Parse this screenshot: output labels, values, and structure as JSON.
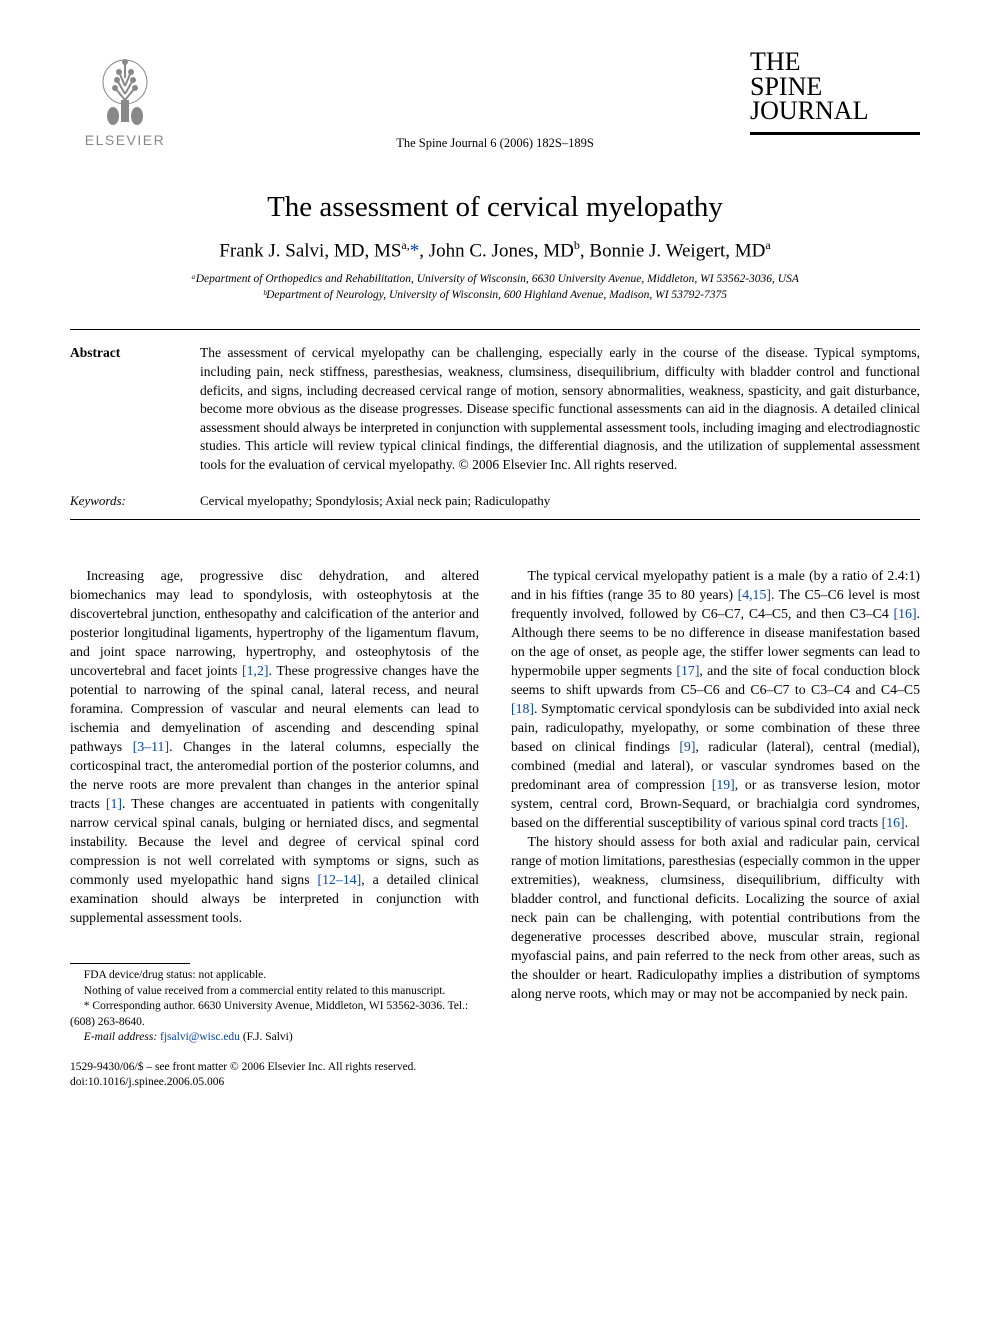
{
  "header": {
    "publisher_name": "ELSEVIER",
    "journal_name_line1": "THE",
    "journal_name_line2": "SPINE",
    "journal_name_line3": "JOURNAL",
    "journal_reference": "The Spine Journal 6 (2006) 182S–189S"
  },
  "article": {
    "title": "The assessment of cervical myelopathy",
    "authors_html": "Frank J. Salvi, MD, MS<sup>a,</sup><a href='#'>*</a>, John C. Jones, MD<sup>b</sup>, Bonnie J. Weigert, MD<sup>a</sup>",
    "affiliation_a": "ᵃDepartment of Orthopedics and Rehabilitation, University of Wisconsin, 6630 University Avenue, Middleton, WI 53562-3036, USA",
    "affiliation_b": "ᵇDepartment of Neurology, University of Wisconsin, 600 Highland Avenue, Madison, WI 53792-7375"
  },
  "abstract": {
    "label": "Abstract",
    "text": "The assessment of cervical myelopathy can be challenging, especially early in the course of the disease. Typical symptoms, including pain, neck stiffness, paresthesias, weakness, clumsiness, disequilibrium, difficulty with bladder control and functional deficits, and signs, including decreased cervical range of motion, sensory abnormalities, weakness, spasticity, and gait disturbance, become more obvious as the disease progresses. Disease specific functional assessments can aid in the diagnosis. A detailed clinical assessment should always be interpreted in conjunction with supplemental assessment tools, including imaging and electrodiagnostic studies. This article will review typical clinical findings, the differential diagnosis, and the utilization of supplemental assessment tools for the evaluation of cervical myelopathy.   © 2006 Elsevier Inc. All rights reserved."
  },
  "keywords": {
    "label": "Keywords:",
    "text": "Cervical myelopathy; Spondylosis; Axial neck pain; Radiculopathy"
  },
  "body": {
    "col1_para": "Increasing age, progressive disc dehydration, and altered biomechanics may lead to spondylosis, with osteophytosis at the discovertebral junction, enthesopathy and calcification of the anterior and posterior longitudinal ligaments, hypertrophy of the ligamentum flavum, and joint space narrowing, hypertrophy, and osteophytosis of the uncovertebral and facet joints [1,2]. These progressive changes have the potential to narrowing of the spinal canal, lateral recess, and neural foramina. Compression of vascular and neural elements can lead to ischemia and demyelination of ascending and descending spinal pathways [3–11]. Changes in the lateral columns, especially the corticospinal tract, the anteromedial portion of the posterior columns, and the nerve roots are more prevalent than changes in the anterior spinal tracts [1]. These changes are accentuated in patients with congenitally narrow cervical spinal canals, bulging or herniated discs, and segmental instability. Because the level and degree of cervical spinal cord compression is not well correlated with symptoms or signs, such as commonly used myelopathic hand signs [12–14], a detailed clinical examination should always be interpreted in conjunction with supplemental assessment tools.",
    "col1_refs": {
      "r1": "[1,2]",
      "r2": "[3–11]",
      "r3": "[1]",
      "r4": "[12–14]"
    },
    "col2_para1": "The typical cervical myelopathy patient is a male (by a ratio of 2.4:1) and in his fifties (range 35 to 80 years) [4,15]. The C5–C6 level is most frequently involved, followed by C6–C7, C4–C5, and then C3–C4 [16]. Although there seems to be no difference in disease manifestation based on the age of onset, as people age, the stiffer lower segments can lead to hypermobile upper segments [17], and the site of focal conduction block seems to shift upwards from C5–C6 and C6–C7 to C3–C4 and C4–C5 [18]. Symptomatic cervical spondylosis can be subdivided into axial neck pain, radiculopathy, myelopathy, or some combination of these three based on clinical findings [9], radicular (lateral), central (medial), combined (medial and lateral), or vascular syndromes based on the predominant area of compression [19], or as transverse lesion, motor system, central cord, Brown-Sequard, or brachialgia cord syndromes, based on the differential susceptibility of various spinal cord tracts [16].",
    "col2_para2": "The history should assess for both axial and radicular pain, cervical range of motion limitations, paresthesias (especially common in the upper extremities), weakness, clumsiness, disequilibrium, difficulty with bladder control, and functional deficits. Localizing the source of axial neck pain can be challenging, with potential contributions from the degenerative processes described above, muscular strain, regional myofascial pains, and pain referred to the neck from other areas, such as the shoulder or heart. Radiculopathy implies a distribution of symptoms along nerve roots, which may or may not be accompanied by neck pain."
  },
  "footnotes": {
    "fda": "FDA device/drug status: not applicable.",
    "coi": "Nothing of value received from a commercial entity related to this manuscript.",
    "corresponding": "* Corresponding author. 6630 University Avenue, Middleton, WI 53562-3036. Tel.: (608) 263-8640.",
    "email_label": "E-mail address:",
    "email": "fjsalvi@wisc.edu",
    "email_name": "(F.J. Salvi)"
  },
  "footer": {
    "copyright": "1529-9430/06/$ – see front matter © 2006 Elsevier Inc. All rights reserved.",
    "doi": "doi:10.1016/j.spinee.2006.05.006"
  },
  "colors": {
    "link": "#0645ad",
    "text": "#000000",
    "publisher_grey": "#888888"
  }
}
